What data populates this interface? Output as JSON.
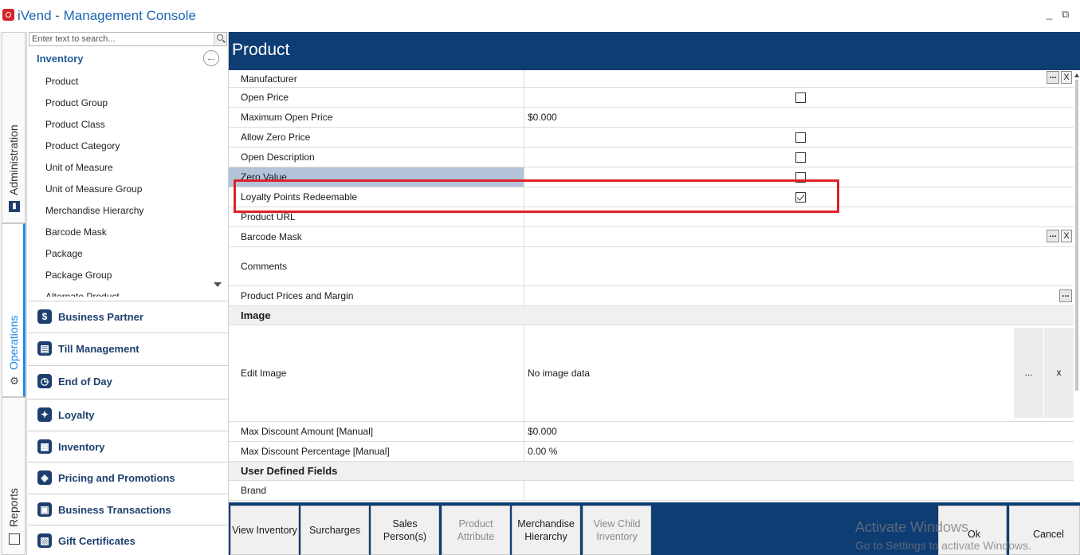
{
  "window": {
    "title": "iVend - Management Console",
    "minimize": "_",
    "restore": "⧉"
  },
  "vnav": {
    "administration": "Administration",
    "operations": "Operations",
    "reports": "Reports"
  },
  "sidebar": {
    "search_placeholder": "Enter text to search...",
    "section_title": "Inventory",
    "items": [
      {
        "label": "Product"
      },
      {
        "label": "Product Group"
      },
      {
        "label": "Product Class"
      },
      {
        "label": "Product Category"
      },
      {
        "label": "Unit of Measure"
      },
      {
        "label": "Unit of Measure Group"
      },
      {
        "label": "Merchandise Hierarchy"
      },
      {
        "label": "Barcode Mask"
      },
      {
        "label": "Package"
      },
      {
        "label": "Package Group"
      },
      {
        "label": "Alternate Product"
      }
    ],
    "groups": [
      {
        "label": "Business Partner",
        "icon": "$"
      },
      {
        "label": "Till Management",
        "icon": "▤"
      },
      {
        "label": "End of Day",
        "icon": "◷"
      },
      {
        "label": "Loyalty",
        "icon": "✦"
      },
      {
        "label": "Inventory",
        "icon": "▦"
      },
      {
        "label": "Pricing and Promotions",
        "icon": "◈"
      },
      {
        "label": "Business Transactions",
        "icon": "▣"
      },
      {
        "label": "Gift Certificates",
        "icon": "▧"
      }
    ]
  },
  "main": {
    "title": "Product",
    "rows": {
      "manufacturer": {
        "label": "Manufacturer",
        "value": ""
      },
      "open_price": {
        "label": "Open Price",
        "checked": false
      },
      "max_open_price": {
        "label": "Maximum Open Price",
        "value": "$0.000"
      },
      "allow_zero_price": {
        "label": "Allow Zero Price",
        "checked": false
      },
      "open_description": {
        "label": "Open Description",
        "checked": false
      },
      "zero_value": {
        "label": "Zero Value",
        "checked": false
      },
      "loyalty_points": {
        "label": "Loyalty Points Redeemable",
        "checked": true
      },
      "product_url": {
        "label": "Product URL",
        "value": ""
      },
      "barcode_mask": {
        "label": "Barcode Mask",
        "value": ""
      },
      "comments": {
        "label": "Comments",
        "value": ""
      },
      "prices_margin": {
        "label": "Product Prices and Margin",
        "value": ""
      },
      "image_section": {
        "label": "Image"
      },
      "edit_image": {
        "label": "Edit Image",
        "value": "No image data"
      },
      "max_discount_amount": {
        "label": "Max Discount Amount [Manual]",
        "value": "$0.000"
      },
      "max_discount_pct": {
        "label": "Max Discount Percentage [Manual]",
        "value": "0.00 %"
      },
      "udf_section": {
        "label": "User Defined Fields"
      },
      "brand": {
        "label": "Brand",
        "value": ""
      }
    },
    "ellipsis": "...",
    "clear": "X",
    "clear_lower": "x"
  },
  "actions": {
    "view_inventory": "View Inventory",
    "surcharges": "Surcharges",
    "sales_persons": "Sales Person(s)",
    "product_attribute": "Product Attribute",
    "merchandise_hierarchy": "Merchandise Hierarchy",
    "view_child_inventory": "View Child Inventory",
    "ok": "Ok",
    "cancel": "Cancel"
  },
  "watermark": {
    "line1": "Activate Windows",
    "line2": "Go to Settings to activate Windows."
  },
  "colors": {
    "header_bg": "#0e3d73",
    "accent_blue": "#1e66b0",
    "highlight_red": "#e0202a",
    "selected_row": "#b3c3d9"
  }
}
